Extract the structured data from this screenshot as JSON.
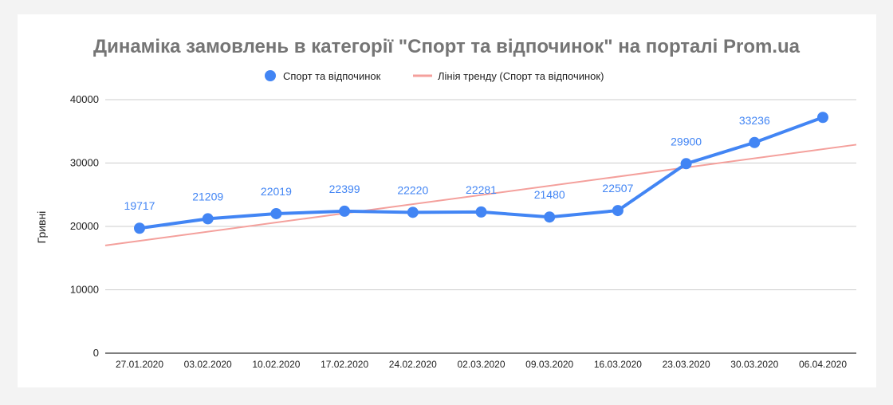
{
  "chart_data": {
    "type": "line",
    "title": "Динаміка замовлень в категорії \"Спорт та відпочинок\" на порталі Prom.ua",
    "ylabel": "Гривні",
    "xlabel": "",
    "ylim": [
      0,
      40000
    ],
    "yticks": [
      0,
      10000,
      20000,
      30000,
      40000
    ],
    "grid": true,
    "legend_position": "top",
    "categories": [
      "27.01.2020",
      "03.02.2020",
      "10.02.2020",
      "17.02.2020",
      "24.02.2020",
      "02.03.2020",
      "09.03.2020",
      "16.03.2020",
      "23.03.2020",
      "30.03.2020",
      "06.04.2020"
    ],
    "series": [
      {
        "name": "Спорт та відпочинок",
        "color": "#4285f4",
        "values": [
          19717,
          21209,
          22019,
          22399,
          22220,
          22281,
          21480,
          22507,
          29900,
          33236,
          37200
        ],
        "data_labels": [
          "19717",
          "21209",
          "22019",
          "22399",
          "22220",
          "22281",
          "21480",
          "22507",
          "29900",
          "33236",
          ""
        ]
      }
    ],
    "trendline": {
      "name": "Лінія тренду (Спорт та відпочинок)",
      "color": "#f4a09c",
      "start_value": 17000,
      "end_value": 32900
    }
  }
}
